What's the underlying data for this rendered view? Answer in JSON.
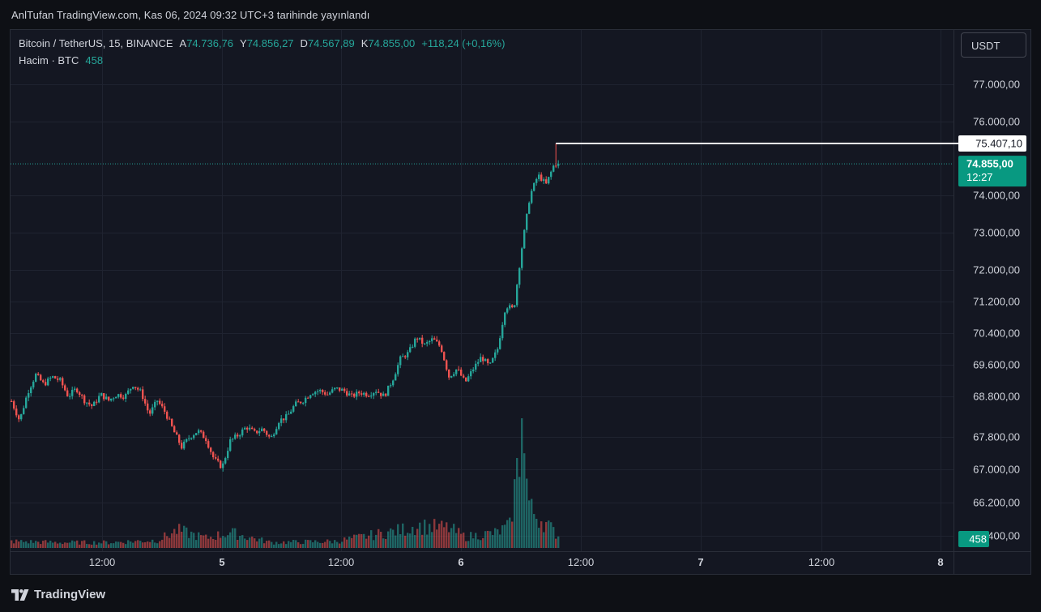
{
  "header": {
    "published_text": "AnlTufan TradingView.com, Kas 06, 2024 09:32 UTC+3 tarihinde yayınlandı"
  },
  "legend": {
    "symbol": "Bitcoin / TetherUS, 15, BINANCE",
    "a_key": "A",
    "a_val": "74.736,76",
    "y_key": "Y",
    "y_val": "74.856,27",
    "d_key": "D",
    "d_val": "74.567,89",
    "k_key": "K",
    "k_val": "74.855,00",
    "change": "+118,24 (+0,16%)",
    "volume_label": "Hacim · BTC",
    "volume_value": "458"
  },
  "currency_button": "USDT",
  "footer": {
    "brand": "TradingView"
  },
  "colors": {
    "up": "#26a69a",
    "down": "#ef5350",
    "grid": "#1f2330",
    "axis_text": "#d1d4dc",
    "price_label_bg": "#089981",
    "high_line": "#ffffff"
  },
  "chart_data": {
    "type": "candlestick",
    "y_ticks": [
      "77.000,00",
      "76.000,00",
      "74.000,00",
      "73.000,00",
      "72.000,00",
      "71.200,00",
      "70.400,00",
      "69.600,00",
      "68.800,00",
      "67.800,00",
      "67.000,00",
      "66.200,00",
      "65.400,00"
    ],
    "x_ticks": [
      "12:00",
      "5",
      "12:00",
      "6",
      "12:00",
      "7",
      "12:00",
      "8"
    ],
    "last_price": "74.855,00",
    "countdown": "12:27",
    "high_marker": "75.407,10",
    "volume_badge": "458",
    "close_path": [
      [
        0,
        68680
      ],
      [
        10,
        68200
      ],
      [
        20,
        68900
      ],
      [
        30,
        69350
      ],
      [
        40,
        69100
      ],
      [
        50,
        69300
      ],
      [
        60,
        69200
      ],
      [
        70,
        68800
      ],
      [
        80,
        69000
      ],
      [
        90,
        68700
      ],
      [
        100,
        68550
      ],
      [
        110,
        68850
      ],
      [
        120,
        68700
      ],
      [
        130,
        68850
      ],
      [
        140,
        68800
      ],
      [
        150,
        69100
      ],
      [
        160,
        68900
      ],
      [
        170,
        68350
      ],
      [
        180,
        68700
      ],
      [
        190,
        68400
      ],
      [
        200,
        67950
      ],
      [
        210,
        67550
      ],
      [
        220,
        67800
      ],
      [
        230,
        67950
      ],
      [
        240,
        67750
      ],
      [
        250,
        67250
      ],
      [
        260,
        67050
      ],
      [
        270,
        67700
      ],
      [
        280,
        67850
      ],
      [
        290,
        68050
      ],
      [
        300,
        67900
      ],
      [
        310,
        68000
      ],
      [
        320,
        67750
      ],
      [
        330,
        68200
      ],
      [
        340,
        68300
      ],
      [
        350,
        68600
      ],
      [
        360,
        68700
      ],
      [
        370,
        68900
      ],
      [
        380,
        68950
      ],
      [
        390,
        68850
      ],
      [
        400,
        69000
      ],
      [
        410,
        68950
      ],
      [
        420,
        68800
      ],
      [
        430,
        68900
      ],
      [
        440,
        68850
      ],
      [
        450,
        68950
      ],
      [
        460,
        68800
      ],
      [
        470,
        69200
      ],
      [
        480,
        69750
      ],
      [
        490,
        69900
      ],
      [
        500,
        70300
      ],
      [
        510,
        70100
      ],
      [
        520,
        70250
      ],
      [
        530,
        70050
      ],
      [
        540,
        69300
      ],
      [
        550,
        69500
      ],
      [
        560,
        69150
      ],
      [
        570,
        69500
      ],
      [
        580,
        69800
      ],
      [
        590,
        69550
      ],
      [
        600,
        70000
      ],
      [
        610,
        71100
      ],
      [
        620,
        71000
      ],
      [
        630,
        72600
      ],
      [
        640,
        74000
      ],
      [
        650,
        74550
      ],
      [
        660,
        74300
      ],
      [
        670,
        74850
      ],
      [
        676,
        74855
      ]
    ],
    "volume_path": [
      [
        0,
        0.06
      ],
      [
        60,
        0.05
      ],
      [
        120,
        0.05
      ],
      [
        180,
        0.07
      ],
      [
        205,
        0.16
      ],
      [
        240,
        0.09
      ],
      [
        270,
        0.14
      ],
      [
        320,
        0.05
      ],
      [
        400,
        0.06
      ],
      [
        480,
        0.16
      ],
      [
        500,
        0.2
      ],
      [
        540,
        0.18
      ],
      [
        560,
        0.1
      ],
      [
        600,
        0.14
      ],
      [
        615,
        0.2
      ],
      [
        630,
        1.0
      ],
      [
        640,
        0.35
      ],
      [
        660,
        0.22
      ],
      [
        676,
        0.1
      ]
    ]
  }
}
